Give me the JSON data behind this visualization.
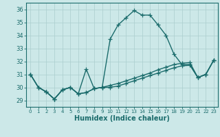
{
  "xlabel": "Humidex (Indice chaleur)",
  "background_color": "#cce8e8",
  "line_color": "#1a6b6b",
  "xlim": [
    -0.5,
    23.5
  ],
  "ylim": [
    28.5,
    36.5
  ],
  "yticks": [
    29,
    30,
    31,
    32,
    33,
    34,
    35,
    36
  ],
  "xticks": [
    0,
    1,
    2,
    3,
    4,
    5,
    6,
    7,
    8,
    9,
    10,
    11,
    12,
    13,
    14,
    15,
    16,
    17,
    18,
    19,
    20,
    21,
    22,
    23
  ],
  "series": [
    [
      31.0,
      30.0,
      29.65,
      29.1,
      29.8,
      30.0,
      29.5,
      31.4,
      29.9,
      30.0,
      33.7,
      34.8,
      35.35,
      35.9,
      35.55,
      35.55,
      34.8,
      34.0,
      32.55,
      31.75,
      31.75,
      30.75,
      31.0,
      32.1
    ],
    [
      31.0,
      30.0,
      29.65,
      29.1,
      29.8,
      30.0,
      29.5,
      29.6,
      29.9,
      30.0,
      30.15,
      30.3,
      30.5,
      30.7,
      30.9,
      31.1,
      31.35,
      31.55,
      31.75,
      31.85,
      31.9,
      30.75,
      31.0,
      32.1
    ],
    [
      31.0,
      30.0,
      29.65,
      29.1,
      29.8,
      30.0,
      29.5,
      29.6,
      29.9,
      30.0,
      30.0,
      30.1,
      30.3,
      30.5,
      30.7,
      30.9,
      31.1,
      31.3,
      31.5,
      31.65,
      31.7,
      30.75,
      31.0,
      32.1
    ]
  ],
  "grid_color": "#aacece",
  "marker": "+",
  "markersize": 4,
  "linewidth": 1.0
}
